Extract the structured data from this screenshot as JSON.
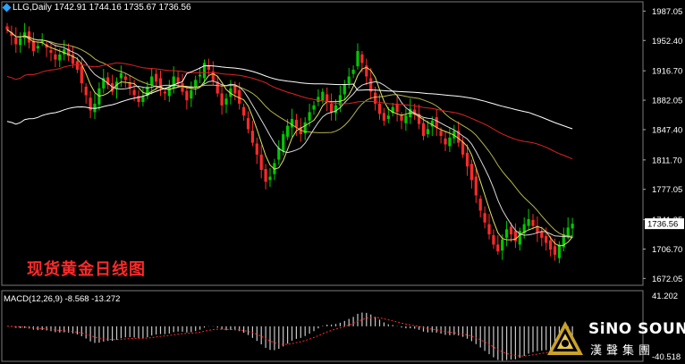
{
  "header": {
    "symbol": "LLG,Daily",
    "ohlc": "1742.91 1744.16 1735.67 1736.56"
  },
  "chart_label_cn": "现货黄金日线图",
  "macd": {
    "label": "MACD(12,26,9) -8.568 -13.272",
    "scale_top": "41.202",
    "scale_bottom": "-40.518"
  },
  "brand": {
    "name": "SiNO SOUND",
    "sub": "漢聲集團"
  },
  "colors": {
    "up": "#00c800",
    "down": "#ff2a2a",
    "ma_white": "#ffffff",
    "ma_red": "#dd2222",
    "ma_yellow": "#e0e060",
    "ma_white2": "#d8d8d8",
    "price_box": "#ffffff"
  },
  "chart_data": {
    "type": "candlestick",
    "symbol": "LLG",
    "timeframe": "Daily",
    "y_axis_ticks": [
      "1987.05",
      "1952.40",
      "1916.70",
      "1882.05",
      "1847.40",
      "1811.70",
      "1777.05",
      "1741.35",
      "1706.70",
      "1672.05"
    ],
    "ylim": [
      1664,
      1998
    ],
    "last_price": "1736.56",
    "approx_closes": [
      1965,
      1958,
      1948,
      1955,
      1962,
      1950,
      1940,
      1946,
      1952,
      1944,
      1938,
      1930,
      1936,
      1942,
      1934,
      1925,
      1918,
      1902,
      1888,
      1870,
      1878,
      1896,
      1908,
      1900,
      1892,
      1904,
      1914,
      1906,
      1896,
      1888,
      1880,
      1886,
      1898,
      1910,
      1904,
      1896,
      1890,
      1898,
      1910,
      1902,
      1892,
      1882,
      1894,
      1906,
      1912,
      1926,
      1918,
      1905,
      1890,
      1876,
      1884,
      1896,
      1890,
      1878,
      1864,
      1848,
      1832,
      1818,
      1800,
      1786,
      1792,
      1808,
      1826,
      1842,
      1852,
      1860,
      1850,
      1842,
      1856,
      1868,
      1876,
      1886,
      1892,
      1880,
      1868,
      1876,
      1888,
      1900,
      1910,
      1918,
      1940,
      1926,
      1910,
      1892,
      1878,
      1866,
      1858,
      1864,
      1874,
      1868,
      1858,
      1864,
      1872,
      1866,
      1854,
      1840,
      1848,
      1858,
      1850,
      1840,
      1830,
      1838,
      1846,
      1832,
      1818,
      1804,
      1788,
      1770,
      1752,
      1738,
      1724,
      1712,
      1704,
      1718,
      1730,
      1724,
      1716,
      1728,
      1736,
      1742,
      1734,
      1726,
      1720,
      1714,
      1706,
      1700,
      1712,
      1724,
      1732,
      1736.56
    ],
    "macd": {
      "ylim": [
        -40.518,
        41.202
      ]
    }
  }
}
